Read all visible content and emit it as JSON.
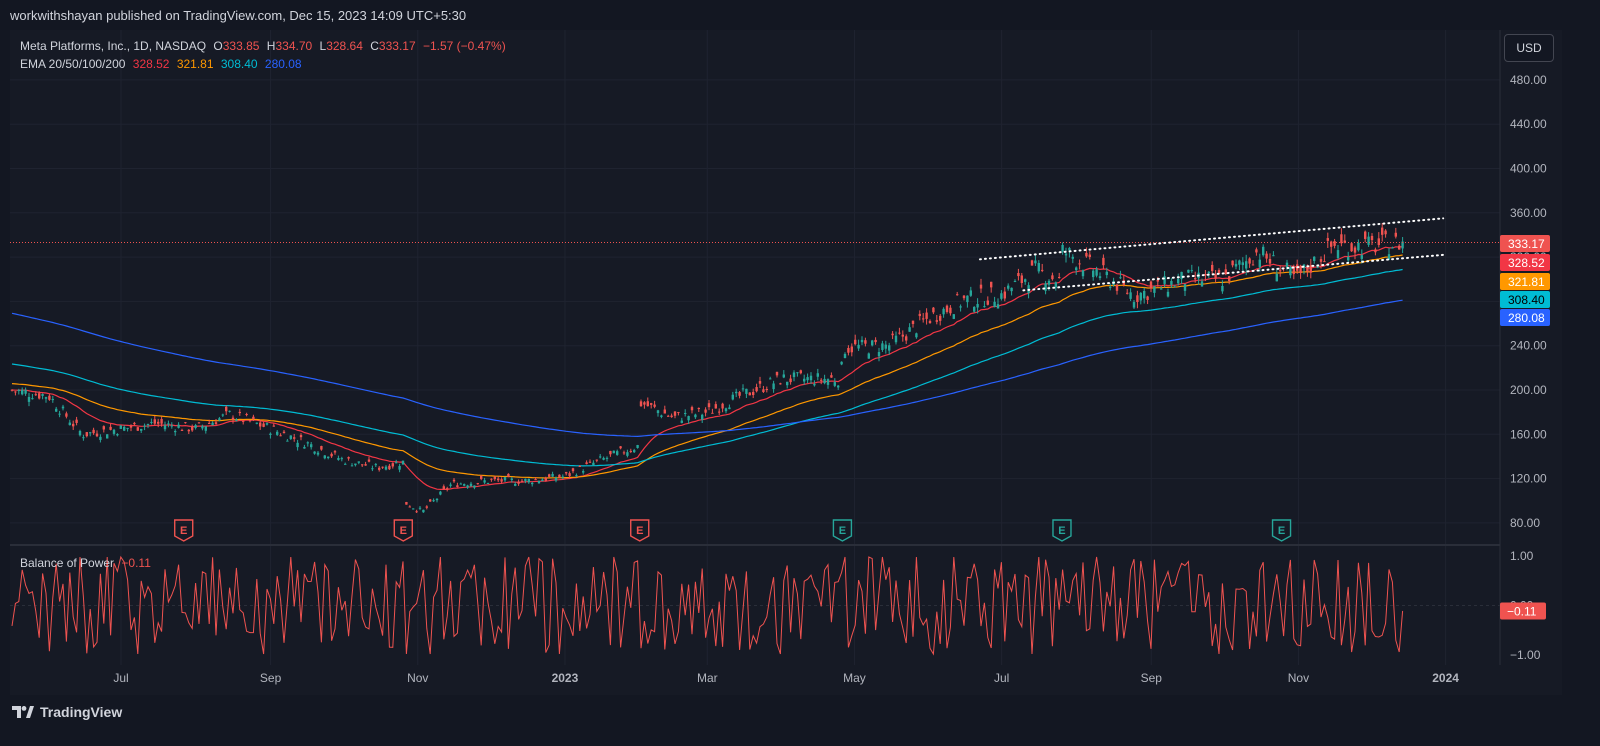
{
  "header": {
    "publisher_text": "workwithshayan published on TradingView.com, Dec 15, 2023 14:09 UTC+5:30"
  },
  "legend": {
    "symbol": "Meta Platforms, Inc., 1D, NASDAQ",
    "open_label": "O",
    "open": "333.85",
    "high_label": "H",
    "high": "334.70",
    "low_label": "L",
    "low": "328.64",
    "close_label": "C",
    "close": "333.17",
    "change": "−1.57 (−0.47%)",
    "ema_label": "EMA 20/50/100/200",
    "ema20": "328.52",
    "ema50": "321.81",
    "ema100": "308.40",
    "ema200": "280.08"
  },
  "currency_button": "USD",
  "indicator": {
    "name": "Balance of Power",
    "value": "−0.11"
  },
  "footer": {
    "brand": "TradingView"
  },
  "colors": {
    "background": "#131722",
    "up": "#26a69a",
    "down": "#ef5350",
    "ema20": "#f23645",
    "ema50": "#ff9800",
    "ema100": "#00bcd4",
    "ema200": "#2962ff",
    "bop_line": "#ef5350"
  },
  "chart_data": [
    {
      "type": "candlestick",
      "title": "Meta Platforms, Inc., 1D, NASDAQ",
      "ylabel": "USD",
      "ylim": [
        60,
        520
      ],
      "y_ticks": [
        "80.00",
        "120.00",
        "160.00",
        "200.00",
        "240.00",
        "280.00",
        "320.00",
        "360.00",
        "400.00",
        "440.00",
        "480.00"
      ],
      "x_ticks": [
        "Jul",
        "Sep",
        "Nov",
        "2023",
        "Mar",
        "May",
        "Jul",
        "Sep",
        "Nov",
        "2024"
      ],
      "price_series_points": [
        [
          "2022-05-16",
          200
        ],
        [
          "2022-06-01",
          195
        ],
        [
          "2022-06-15",
          160
        ],
        [
          "2022-07-01",
          165
        ],
        [
          "2022-07-15",
          170
        ],
        [
          "2022-08-01",
          165
        ],
        [
          "2022-08-15",
          178
        ],
        [
          "2022-09-01",
          165
        ],
        [
          "2022-09-15",
          153
        ],
        [
          "2022-10-01",
          137
        ],
        [
          "2022-10-15",
          130
        ],
        [
          "2022-10-26",
          135
        ],
        [
          "2022-10-27",
          98
        ],
        [
          "2022-11-03",
          90
        ],
        [
          "2022-11-15",
          115
        ],
        [
          "2022-12-01",
          118
        ],
        [
          "2022-12-15",
          118
        ],
        [
          "2023-01-01",
          122
        ],
        [
          "2023-01-15",
          136
        ],
        [
          "2023-02-01",
          150
        ],
        [
          "2023-02-02",
          188
        ],
        [
          "2023-02-15",
          175
        ],
        [
          "2023-03-01",
          180
        ],
        [
          "2023-03-15",
          195
        ],
        [
          "2023-04-01",
          210
        ],
        [
          "2023-04-25",
          210
        ],
        [
          "2023-04-27",
          238
        ],
        [
          "2023-05-15",
          240
        ],
        [
          "2023-06-01",
          265
        ],
        [
          "2023-06-15",
          281
        ],
        [
          "2023-07-01",
          286
        ],
        [
          "2023-07-15",
          308
        ],
        [
          "2023-07-26",
          298
        ],
        [
          "2023-07-27",
          325
        ],
        [
          "2023-08-15",
          300
        ],
        [
          "2023-08-25",
          285
        ],
        [
          "2023-09-15",
          300
        ],
        [
          "2023-10-01",
          300
        ],
        [
          "2023-10-15",
          325
        ],
        [
          "2023-10-31",
          300
        ],
        [
          "2023-11-15",
          330
        ],
        [
          "2023-11-30",
          330
        ],
        [
          "2023-12-15",
          333.17
        ]
      ],
      "ema": [
        {
          "name": "EMA 20",
          "last": 328.52
        },
        {
          "name": "EMA 50",
          "last": 321.81
        },
        {
          "name": "EMA 100",
          "last": 308.4
        },
        {
          "name": "EMA 200",
          "last": 280.08
        }
      ],
      "last_price": 333.17,
      "price_labels": [
        "333.17",
        "328.52",
        "321.81",
        "308.40",
        "280.08"
      ],
      "earnings_markers": [
        {
          "date": "2022-07-27",
          "label": "E",
          "result": "miss"
        },
        {
          "date": "2022-10-26",
          "label": "E",
          "result": "miss"
        },
        {
          "date": "2023-02-01",
          "label": "E",
          "result": "miss"
        },
        {
          "date": "2023-04-26",
          "label": "E",
          "result": "beat"
        },
        {
          "date": "2023-07-26",
          "label": "E",
          "result": "beat"
        },
        {
          "date": "2023-10-25",
          "label": "E",
          "result": "beat"
        }
      ],
      "trendlines": [
        {
          "style": "dotted",
          "from": [
            "2023-06-22",
            318
          ],
          "to": [
            "2023-12-31",
            355
          ]
        },
        {
          "style": "dotted",
          "from": [
            "2023-07-10",
            290
          ],
          "to": [
            "2023-12-31",
            322
          ]
        }
      ]
    },
    {
      "type": "line",
      "title": "Balance of Power",
      "ylim": [
        -1.1,
        1.1
      ],
      "y_ticks": [
        "1.00",
        "0.00",
        "−1.00"
      ],
      "last_value": -0.11
    }
  ]
}
